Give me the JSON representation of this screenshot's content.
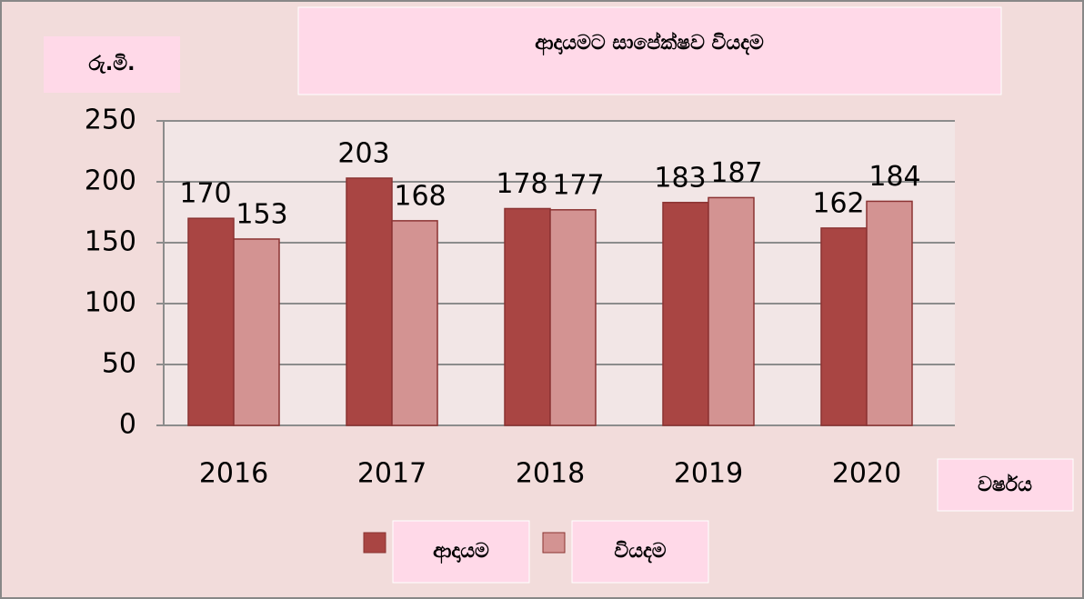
{
  "chart_data": {
    "type": "bar",
    "title": "ආදායමට සාපේක්ෂව වියදම",
    "y_label": "රු.මි.",
    "x_label": "වර්ෂය",
    "categories": [
      "2016",
      "2017",
      "2018",
      "2019",
      "2020"
    ],
    "series": [
      {
        "name": "ආදායම",
        "color": "#a94543",
        "values": [
          170,
          203,
          178,
          183,
          162
        ]
      },
      {
        "name": "වියදම",
        "color": "#d39392",
        "values": [
          153,
          168,
          177,
          187,
          184
        ]
      }
    ],
    "ylim": [
      0,
      250
    ],
    "yticks": [
      0,
      50,
      100,
      150,
      200,
      250
    ],
    "grid": true
  }
}
